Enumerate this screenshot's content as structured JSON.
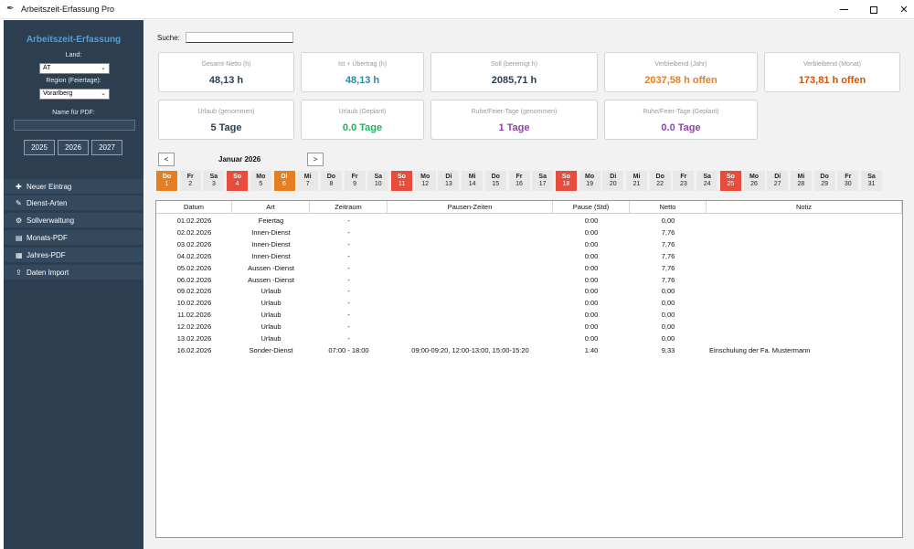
{
  "window": {
    "title": "Arbeitszeit-Erfassung Pro"
  },
  "sidebar": {
    "title": "Arbeitszeit-Erfassung",
    "land_label": "Land:",
    "land_value": "AT",
    "region_label": "Region (Feiertage):",
    "region_value": "Vorarlberg",
    "pdf_label": "Name für PDF:",
    "pdf_value": "",
    "years": [
      "2025",
      "2026",
      "2027"
    ],
    "nav": [
      {
        "label": "Neuer Eintrag",
        "icon": "plus-icon"
      },
      {
        "label": "Dienst-Arten",
        "icon": "pencil-icon"
      },
      {
        "label": "Sollverwaltung",
        "icon": "gear-icon"
      },
      {
        "label": "Monats-PDF",
        "icon": "document-icon"
      },
      {
        "label": "Jahres-PDF",
        "icon": "calendar-icon"
      },
      {
        "label": "Daten Import",
        "icon": "import-icon"
      }
    ]
  },
  "search": {
    "label": "Suche:",
    "value": ""
  },
  "cards": [
    {
      "label": "Gesamt-Netto (h)",
      "value": "48,13 h",
      "color": "#2c3e50"
    },
    {
      "label": "Ist + Übertrag (h)",
      "value": "48,13 h",
      "color": "#2e86ab"
    },
    {
      "label": "Soll (bereinigt h)",
      "value": "2085,71 h",
      "color": "#2c3e50"
    },
    {
      "label": "Verbleibend (Jahr)",
      "value": "2037,58 h offen",
      "color": "#e67e22"
    },
    {
      "label": "Verbleibend (Monat)",
      "value": "173,81 h offen",
      "color": "#d35400"
    },
    {
      "label": "Urlaub (genommen)",
      "value": "5 Tage",
      "color": "#2c3e50"
    },
    {
      "label": "Urlaub (Geplant)",
      "value": "0.0 Tage",
      "color": "#27ae60"
    },
    {
      "label": "Ruhe/Feier-Tage (genommen)",
      "value": "1 Tage",
      "color": "#8e44ad"
    },
    {
      "label": "Ruhe/Feier-Tage (Geplant)",
      "value": "0.0 Tage",
      "color": "#8e44ad"
    }
  ],
  "calendar": {
    "prev": "<",
    "next": ">",
    "month": "Januar 2026",
    "days": [
      {
        "n": "Do",
        "d": "1",
        "t": "holiday"
      },
      {
        "n": "Fr",
        "d": "2",
        "t": ""
      },
      {
        "n": "Sa",
        "d": "3",
        "t": ""
      },
      {
        "n": "So",
        "d": "4",
        "t": "sunday"
      },
      {
        "n": "Mo",
        "d": "5",
        "t": ""
      },
      {
        "n": "Di",
        "d": "6",
        "t": "holiday"
      },
      {
        "n": "Mi",
        "d": "7",
        "t": ""
      },
      {
        "n": "Do",
        "d": "8",
        "t": ""
      },
      {
        "n": "Fr",
        "d": "9",
        "t": ""
      },
      {
        "n": "Sa",
        "d": "10",
        "t": ""
      },
      {
        "n": "So",
        "d": "11",
        "t": "sunday"
      },
      {
        "n": "Mo",
        "d": "12",
        "t": ""
      },
      {
        "n": "Di",
        "d": "13",
        "t": ""
      },
      {
        "n": "Mi",
        "d": "14",
        "t": ""
      },
      {
        "n": "Do",
        "d": "15",
        "t": ""
      },
      {
        "n": "Fr",
        "d": "16",
        "t": ""
      },
      {
        "n": "Sa",
        "d": "17",
        "t": ""
      },
      {
        "n": "So",
        "d": "18",
        "t": "sunday"
      },
      {
        "n": "Mo",
        "d": "19",
        "t": ""
      },
      {
        "n": "Di",
        "d": "20",
        "t": ""
      },
      {
        "n": "Mi",
        "d": "21",
        "t": ""
      },
      {
        "n": "Do",
        "d": "22",
        "t": ""
      },
      {
        "n": "Fr",
        "d": "23",
        "t": ""
      },
      {
        "n": "Sa",
        "d": "24",
        "t": ""
      },
      {
        "n": "So",
        "d": "25",
        "t": "sunday"
      },
      {
        "n": "Mo",
        "d": "26",
        "t": ""
      },
      {
        "n": "Di",
        "d": "27",
        "t": ""
      },
      {
        "n": "Mi",
        "d": "28",
        "t": ""
      },
      {
        "n": "Do",
        "d": "29",
        "t": ""
      },
      {
        "n": "Fr",
        "d": "30",
        "t": ""
      },
      {
        "n": "Sa",
        "d": "31",
        "t": ""
      }
    ]
  },
  "table": {
    "headers": [
      "Datum",
      "Art",
      "Zeitraum",
      "Pausen-Zeiten",
      "Pause (Std)",
      "Netto",
      "Notiz"
    ],
    "rows": [
      [
        "01.02.2026",
        "Feiertag",
        "-",
        "",
        "0:00",
        "0,00",
        ""
      ],
      [
        "02.02.2026",
        "Innen-Dienst",
        "-",
        "",
        "0:00",
        "7,76",
        ""
      ],
      [
        "03.02.2026",
        "Innen-Dienst",
        "-",
        "",
        "0:00",
        "7,76",
        ""
      ],
      [
        "04.02.2026",
        "Innen-Dienst",
        "-",
        "",
        "0:00",
        "7,76",
        ""
      ],
      [
        "05.02.2026",
        "Aussen -Dienst",
        "-",
        "",
        "0:00",
        "7,76",
        ""
      ],
      [
        "06.02.2026",
        "Aussen -Dienst",
        "-",
        "",
        "0:00",
        "7,76",
        ""
      ],
      [
        "09.02.2026",
        "Urlaub",
        "-",
        "",
        "0:00",
        "0,00",
        ""
      ],
      [
        "10.02.2026",
        "Urlaub",
        "-",
        "",
        "0:00",
        "0,00",
        ""
      ],
      [
        "11.02.2026",
        "Urlaub",
        "-",
        "",
        "0:00",
        "0,00",
        ""
      ],
      [
        "12.02.2026",
        "Urlaub",
        "-",
        "",
        "0:00",
        "0,00",
        ""
      ],
      [
        "13.02.2026",
        "Urlaub",
        "-",
        "",
        "0:00",
        "0,00",
        ""
      ],
      [
        "16.02.2026",
        "Sonder-Dienst",
        "07:00 - 18:00",
        "09:00-09:20, 12:00-13:00, 15:00-15:20",
        "1:40",
        "9,33",
        "Einschulung der Fa. Mustermann"
      ]
    ]
  }
}
